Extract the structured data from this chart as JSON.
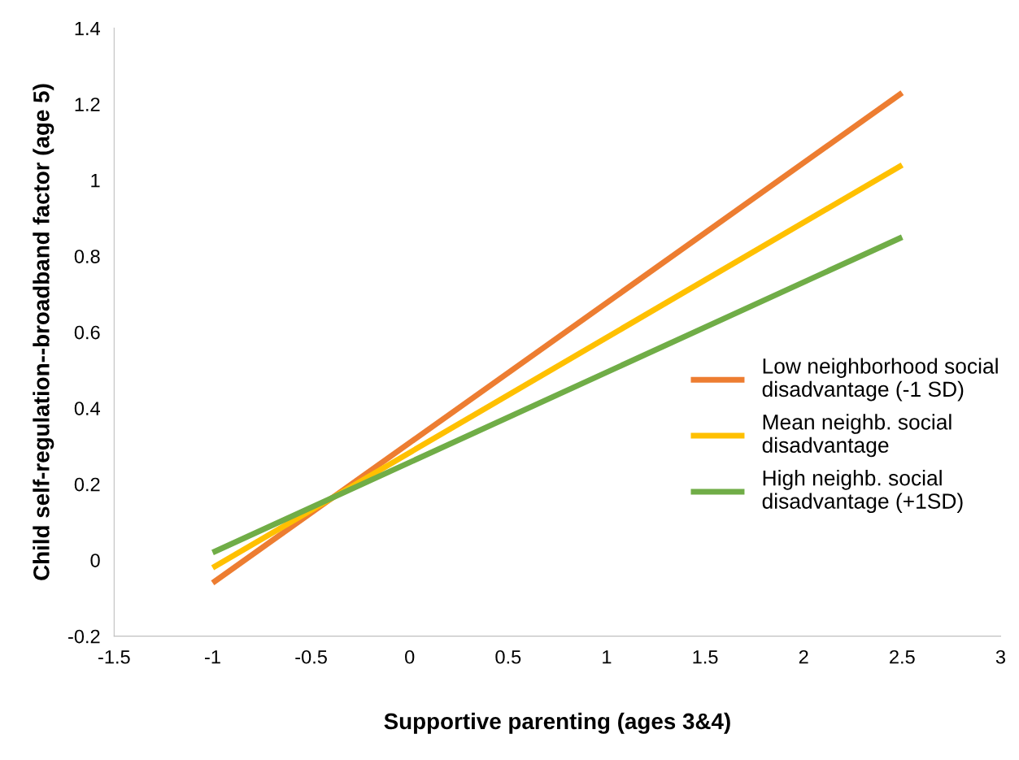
{
  "chart_data": {
    "type": "line",
    "xlabel": "Supportive parenting (ages 3&4)",
    "ylabel": "Child self-regulation--broadband factor (age 5)",
    "xlim": [
      -1.5,
      3
    ],
    "xticks": [
      -1.5,
      -1,
      -0.5,
      0,
      0.5,
      1,
      1.5,
      2,
      2.5,
      3
    ],
    "ylim": [
      -0.2,
      1.4
    ],
    "yticks": [
      -0.2,
      0,
      0.2,
      0.4,
      0.6,
      0.8,
      1,
      1.2,
      1.4
    ],
    "x": [
      -1,
      2.5
    ],
    "series": [
      {
        "name": "Low neighborhood social disadvantage (-1 SD)",
        "color": "#ed7d31",
        "values": [
          -0.06,
          1.23
        ]
      },
      {
        "name": "Mean neighb. social disadvantage",
        "color": "#ffc000",
        "values": [
          -0.02,
          1.04
        ]
      },
      {
        "name": "High neighb. social disadvantage (+1SD)",
        "color": "#70ad47",
        "values": [
          0.02,
          0.85
        ]
      }
    ],
    "grid": false,
    "legend": "right",
    "marker": "none",
    "line_style": "solid"
  }
}
